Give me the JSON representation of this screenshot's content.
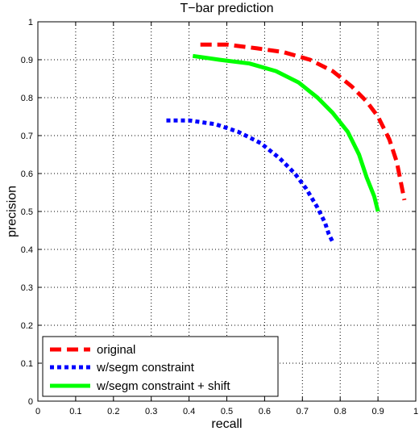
{
  "chart_data": {
    "type": "line",
    "title": "T−bar prediction",
    "xlabel": "recall",
    "ylabel": "precision",
    "xlim": [
      0,
      1
    ],
    "ylim": [
      0,
      1
    ],
    "xticks": [
      "0",
      "0.1",
      "0.2",
      "0.3",
      "0.4",
      "0.5",
      "0.6",
      "0.7",
      "0.8",
      "0.9",
      "1"
    ],
    "yticks": [
      "0",
      "0.1",
      "0.2",
      "0.3",
      "0.4",
      "0.5",
      "0.6",
      "0.7",
      "0.8",
      "0.9",
      "1"
    ],
    "grid": true,
    "legend_position": "bottom-left",
    "series": [
      {
        "name": "original",
        "color": "#ff0000",
        "style": "dashed",
        "x": [
          0.43,
          0.5,
          0.58,
          0.65,
          0.72,
          0.78,
          0.83,
          0.87,
          0.9,
          0.93,
          0.95,
          0.96,
          0.97
        ],
        "y": [
          0.94,
          0.94,
          0.93,
          0.92,
          0.9,
          0.87,
          0.83,
          0.79,
          0.75,
          0.69,
          0.63,
          0.58,
          0.53
        ]
      },
      {
        "name": "w/segm constraint",
        "color": "#0000ff",
        "style": "dotted",
        "x": [
          0.34,
          0.4,
          0.47,
          0.53,
          0.59,
          0.64,
          0.68,
          0.71,
          0.74,
          0.76,
          0.77,
          0.78
        ],
        "y": [
          0.74,
          0.74,
          0.73,
          0.71,
          0.68,
          0.64,
          0.6,
          0.56,
          0.51,
          0.47,
          0.44,
          0.42
        ]
      },
      {
        "name": "w/segm constraint + shift",
        "color": "#00ff00",
        "style": "solid",
        "x": [
          0.41,
          0.48,
          0.56,
          0.63,
          0.69,
          0.74,
          0.78,
          0.82,
          0.85,
          0.87,
          0.89,
          0.9
        ],
        "y": [
          0.91,
          0.9,
          0.89,
          0.87,
          0.84,
          0.8,
          0.76,
          0.71,
          0.65,
          0.59,
          0.54,
          0.5
        ]
      }
    ]
  }
}
